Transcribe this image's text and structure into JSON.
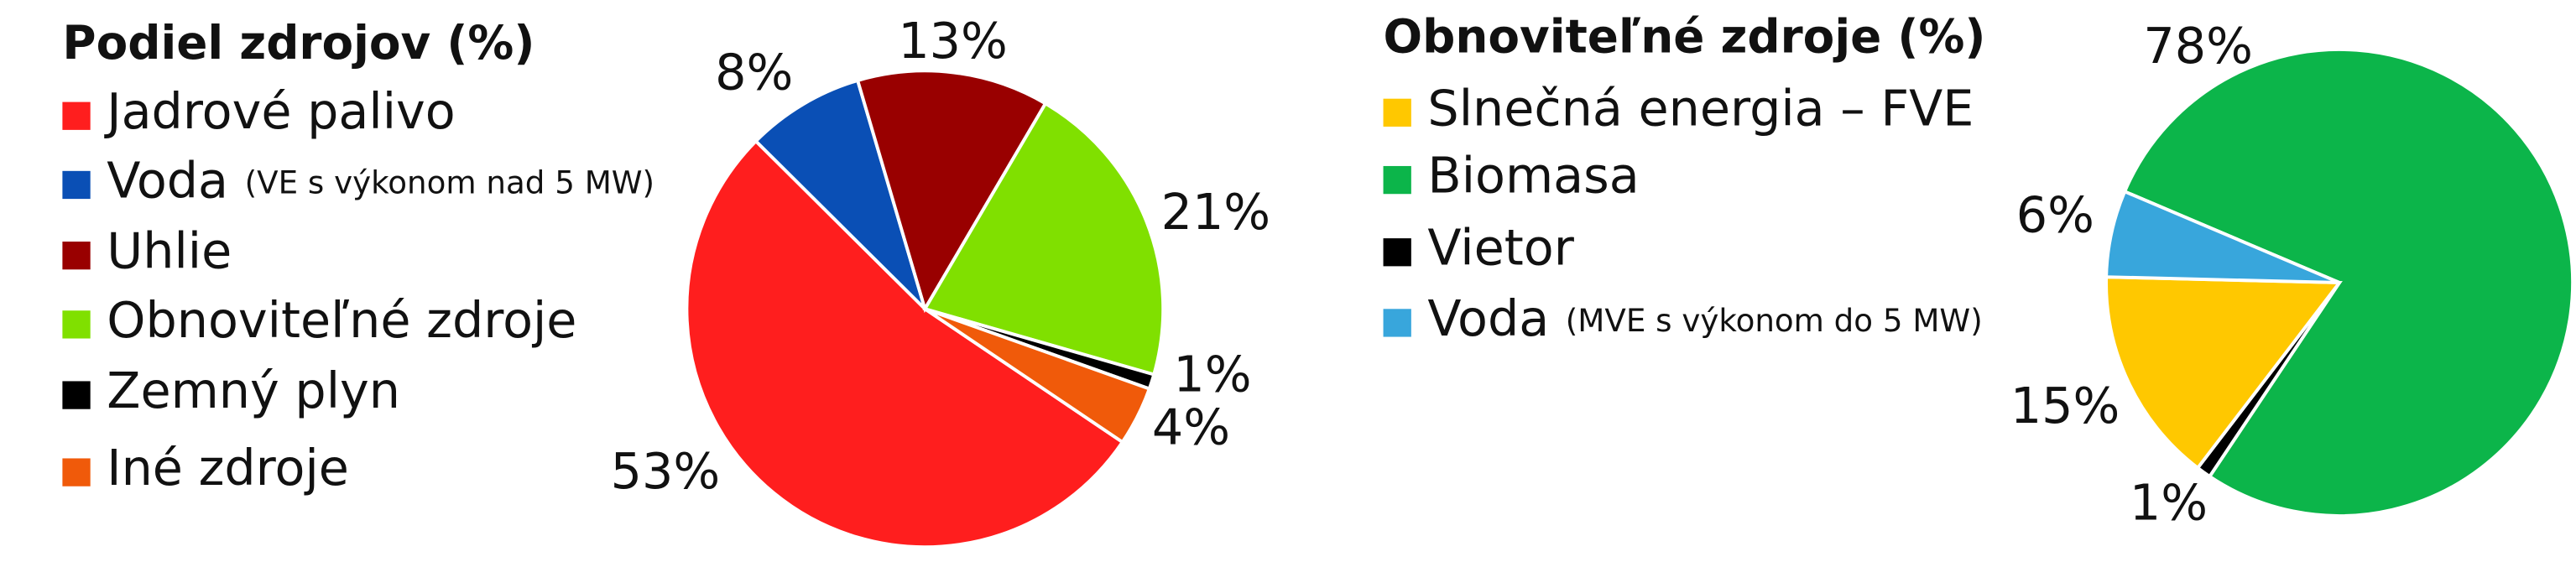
{
  "chart_data": [
    {
      "type": "pie",
      "title": "Podiel zdrojov (%)",
      "categories": [
        "Jadrové palivo",
        "Voda",
        "Uhlie",
        "Obnoviteľné zdroje",
        "Zemný plyn",
        "Iné zdroje"
      ],
      "category_notes": [
        null,
        "(VE s výkonom nad 5 MW)",
        null,
        null,
        null,
        null
      ],
      "values": [
        53,
        8,
        13,
        21,
        1,
        4
      ],
      "value_labels": [
        "53%",
        "8%",
        "13%",
        "21%",
        "1%",
        "4%"
      ],
      "colors": [
        "#ff1e1e",
        "#0a4fb5",
        "#990000",
        "#80e000",
        "#000000",
        "#f05a0a"
      ]
    },
    {
      "type": "pie",
      "title": "Obnoviteľné zdroje (%)",
      "categories": [
        "Slnečná energia – FVE",
        "Biomasa",
        "Vietor",
        "Voda"
      ],
      "category_notes": [
        null,
        null,
        null,
        "(MVE s výkonom do 5 MW)"
      ],
      "values": [
        15,
        78,
        1,
        6
      ],
      "value_labels": [
        "15%",
        "78%",
        "1%",
        "6%"
      ],
      "colors": [
        "#ffc800",
        "#0cb54a",
        "#000000",
        "#38a6dc"
      ]
    }
  ]
}
